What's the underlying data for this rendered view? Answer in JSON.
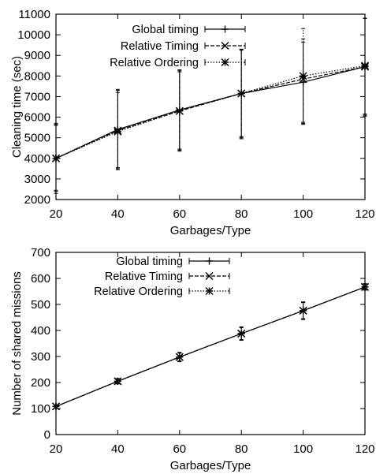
{
  "chart_data": [
    {
      "type": "line",
      "title": "",
      "xlabel": "Garbages/Type",
      "ylabel": "Cleaning time (sec)",
      "x": [
        20,
        40,
        60,
        80,
        100,
        120
      ],
      "xlim": [
        20,
        120
      ],
      "ylim": [
        2000,
        11000
      ],
      "xticks": [
        20,
        40,
        60,
        80,
        100,
        120
      ],
      "yticks": [
        2000,
        3000,
        4000,
        5000,
        6000,
        7000,
        8000,
        9000,
        10000,
        11000
      ],
      "grid": false,
      "legend_position": "top-left",
      "series": [
        {
          "name": "Global timing",
          "marker": "plus",
          "dash": "",
          "values": [
            4000,
            5400,
            6350,
            7150,
            7700,
            8450
          ],
          "err_low": [
            2300,
            3450,
            4350,
            4950,
            5650,
            6050
          ],
          "err_high": [
            5700,
            7350,
            8300,
            9300,
            9650,
            10800
          ]
        },
        {
          "name": "Relative Timing",
          "marker": "x",
          "dash": "5,2",
          "values": [
            4000,
            5350,
            6300,
            7150,
            7850,
            8450
          ],
          "err_low": [
            2400,
            3500,
            4400,
            5000,
            5700,
            6100
          ],
          "err_high": [
            5650,
            7300,
            8250,
            9250,
            9800,
            10800
          ]
        },
        {
          "name": "Relative Ordering",
          "marker": "star",
          "dash": "1.5,2",
          "values": [
            4000,
            5300,
            6300,
            7150,
            8000,
            8500
          ],
          "err_low": [
            2450,
            3550,
            4450,
            5050,
            5750,
            6150
          ],
          "err_high": [
            5600,
            7200,
            8200,
            9300,
            10300,
            10800
          ]
        }
      ]
    },
    {
      "type": "line",
      "title": "",
      "xlabel": "Garbages/Type",
      "ylabel": "Number of shared missions",
      "x": [
        20,
        40,
        60,
        80,
        100,
        120
      ],
      "xlim": [
        20,
        120
      ],
      "ylim": [
        0,
        700
      ],
      "xticks": [
        20,
        40,
        60,
        80,
        100,
        120
      ],
      "yticks": [
        0,
        100,
        200,
        300,
        400,
        500,
        600,
        700
      ],
      "grid": false,
      "legend_position": "top-left",
      "series": [
        {
          "name": "Global timing",
          "marker": "plus",
          "dash": "",
          "values": [
            108,
            205,
            298,
            388,
            476,
            567
          ],
          "err_low": [
            102,
            195,
            280,
            362,
            442,
            555
          ],
          "err_high": [
            114,
            215,
            316,
            414,
            510,
            580
          ]
        },
        {
          "name": "Relative Timing",
          "marker": "x",
          "dash": "5,2",
          "values": [
            108,
            205,
            298,
            388,
            476,
            567
          ],
          "err_low": [
            102,
            195,
            282,
            364,
            444,
            556
          ],
          "err_high": [
            114,
            215,
            314,
            412,
            508,
            579
          ]
        },
        {
          "name": "Relative Ordering",
          "marker": "star",
          "dash": "1.5,2",
          "values": [
            108,
            205,
            298,
            388,
            476,
            567
          ],
          "err_low": [
            103,
            196,
            283,
            365,
            445,
            557
          ],
          "err_high": [
            113,
            214,
            313,
            411,
            507,
            578
          ]
        }
      ]
    }
  ]
}
